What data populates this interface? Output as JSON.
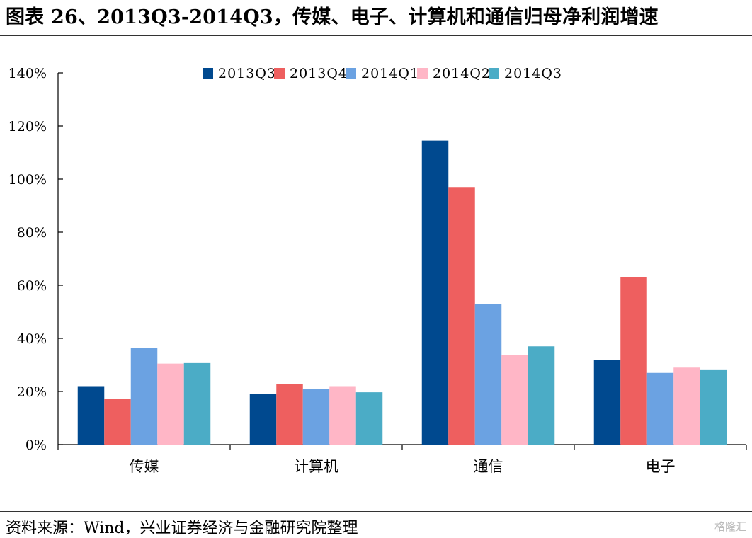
{
  "title": "图表 26、2013Q3-2014Q3，传媒、电子、计算机和通信归母净利润增速",
  "source": "资料来源：Wind，兴业证券经济与金融研究院整理",
  "watermark": "格隆汇",
  "chart_data": {
    "type": "bar",
    "categories": [
      "传媒",
      "计算机",
      "通信",
      "电子"
    ],
    "series": [
      {
        "name": "2013Q3",
        "color": "#00498F",
        "values": [
          22,
          19.2,
          114.5,
          32
        ]
      },
      {
        "name": "2013Q4",
        "color": "#EE5F5F",
        "values": [
          17.2,
          22.7,
          97,
          63
        ]
      },
      {
        "name": "2014Q1",
        "color": "#6BA2E2",
        "values": [
          36.5,
          20.8,
          52.8,
          27
        ]
      },
      {
        "name": "2014Q2",
        "color": "#FFB6C6",
        "values": [
          30.5,
          22,
          33.8,
          29
        ]
      },
      {
        "name": "2014Q3",
        "color": "#4BACC6",
        "values": [
          30.7,
          19.7,
          37,
          28.3
        ]
      }
    ],
    "ylim": [
      0,
      140
    ],
    "yticks": [
      0,
      20,
      40,
      60,
      80,
      100,
      120,
      140
    ],
    "yunit": "%",
    "legend": "top",
    "grid": false
  }
}
